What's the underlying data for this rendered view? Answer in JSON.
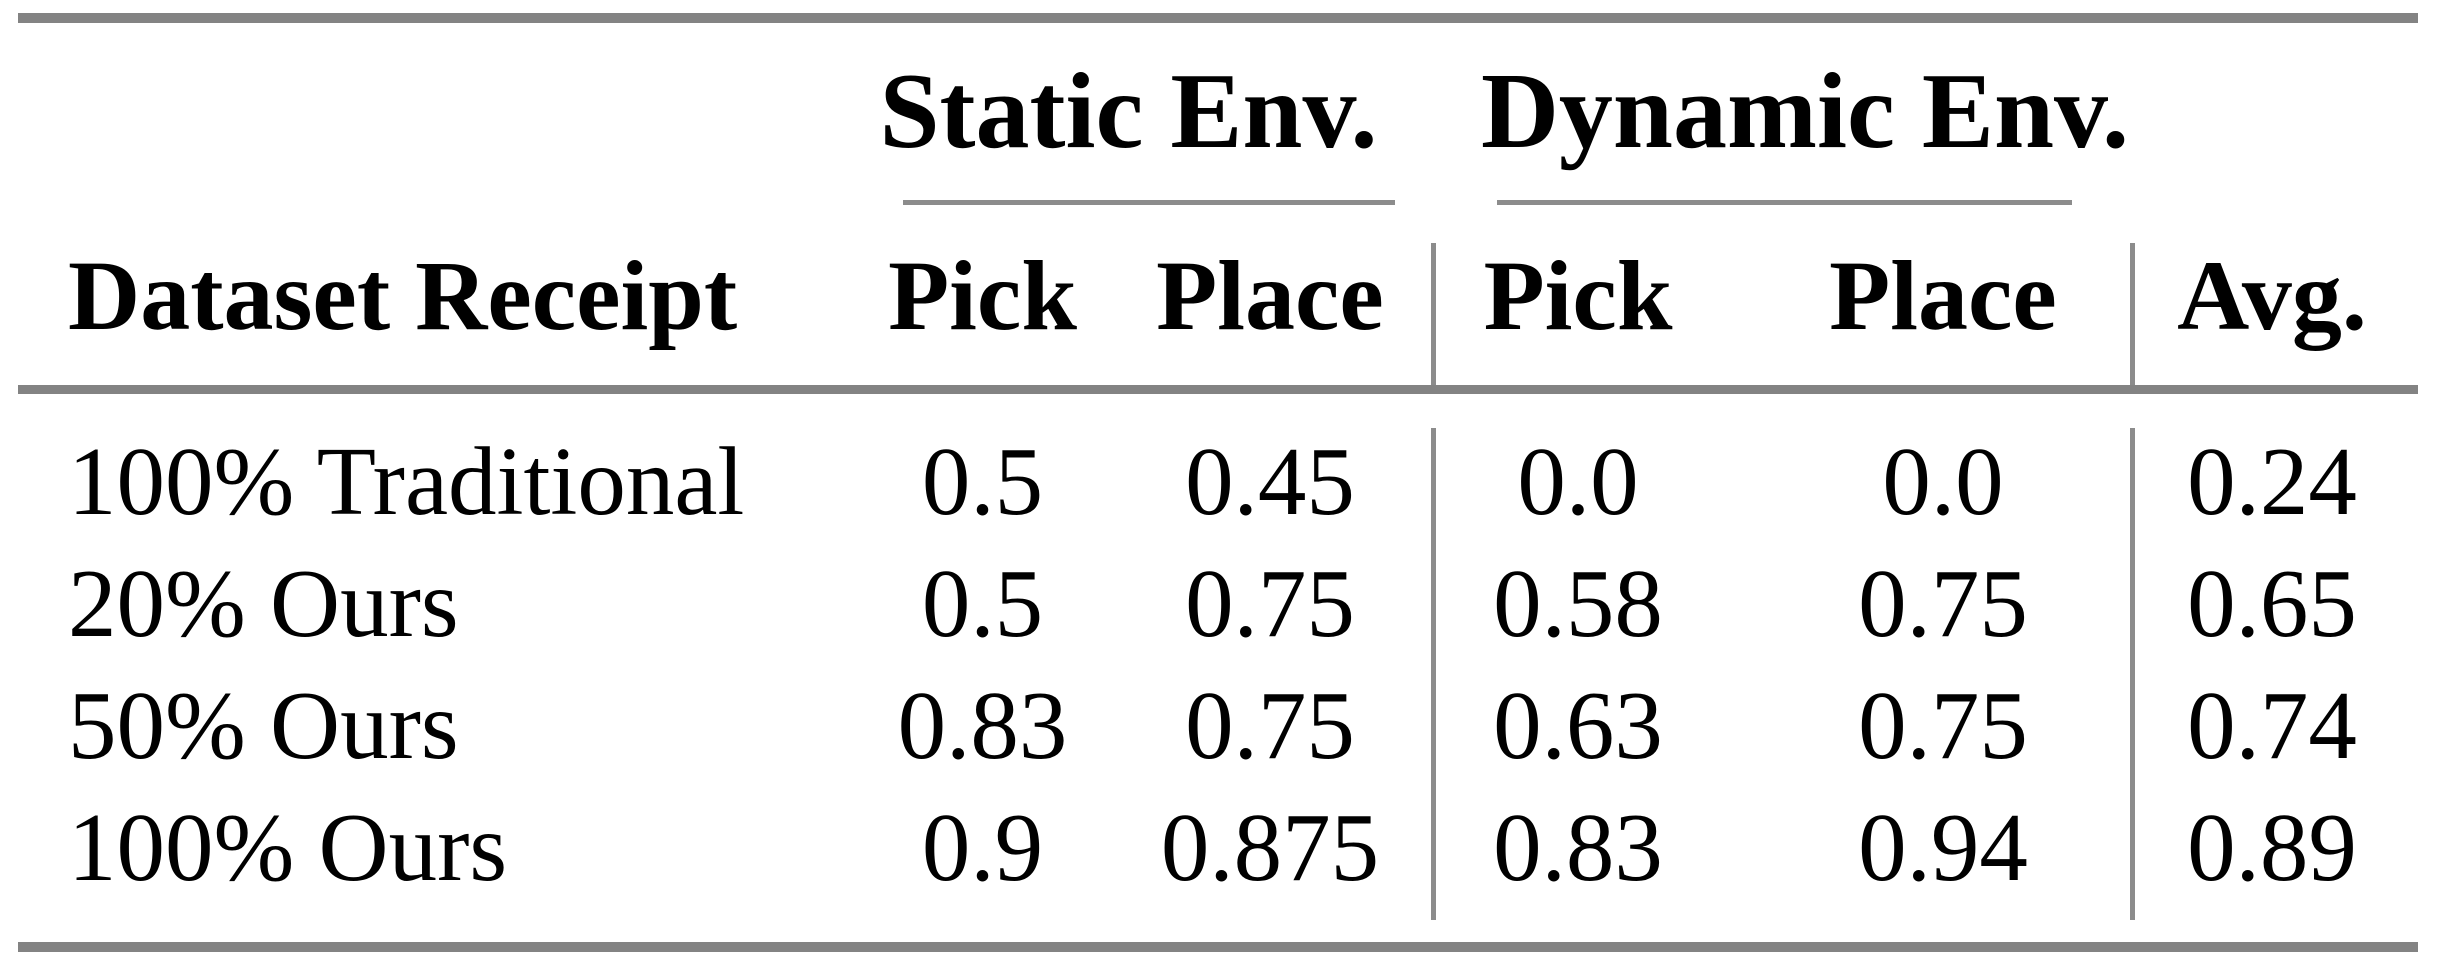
{
  "colors": {
    "background": "#ffffff",
    "text": "#000000",
    "rule_thick": "#838383",
    "rule_thin": "#8c8c8c"
  },
  "table": {
    "corner_label": "Dataset Receipt",
    "groups": [
      {
        "label": "Static Env.",
        "columns": [
          "Pick",
          "Place"
        ]
      },
      {
        "label": "Dynamic Env.",
        "columns": [
          "Pick",
          "Place"
        ]
      }
    ],
    "avg_label": "Avg.",
    "rows": [
      {
        "label": "100% Traditional",
        "static_pick": "0.5",
        "static_place": "0.45",
        "dynamic_pick": "0.0",
        "dynamic_place": "0.0",
        "avg": "0.24"
      },
      {
        "label": "20% Ours",
        "static_pick": "0.5",
        "static_place": "0.75",
        "dynamic_pick": "0.58",
        "dynamic_place": "0.75",
        "avg": "0.65"
      },
      {
        "label": "50% Ours",
        "static_pick": "0.83",
        "static_place": "0.75",
        "dynamic_pick": "0.63",
        "dynamic_place": "0.75",
        "avg": "0.74"
      },
      {
        "label": "100% Ours",
        "static_pick": "0.9",
        "static_place": "0.875",
        "dynamic_pick": "0.83",
        "dynamic_place": "0.94",
        "avg": "0.89"
      }
    ]
  },
  "chart_data": {
    "type": "table",
    "columns": [
      "Dataset Receipt",
      "Static Env. Pick",
      "Static Env. Place",
      "Dynamic Env. Pick",
      "Dynamic Env. Place",
      "Avg."
    ],
    "rows": [
      [
        "100% Traditional",
        0.5,
        0.45,
        0.0,
        0.0,
        0.24
      ],
      [
        "20% Ours",
        0.5,
        0.75,
        0.58,
        0.75,
        0.65
      ],
      [
        "50% Ours",
        0.83,
        0.75,
        0.63,
        0.75,
        0.74
      ],
      [
        "100% Ours",
        0.9,
        0.875,
        0.83,
        0.94,
        0.89
      ]
    ]
  }
}
